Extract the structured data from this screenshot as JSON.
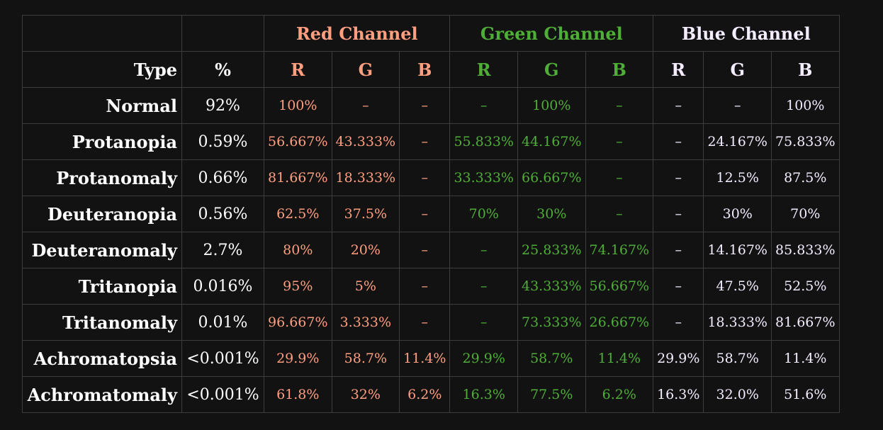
{
  "headers": {
    "channels": [
      {
        "label": "Red Channel",
        "color": "#ff9f80"
      },
      {
        "label": "Green Channel",
        "color": "#4fae37"
      },
      {
        "label": "Blue Channel",
        "color": "#f4ecff"
      }
    ],
    "type": "Type",
    "percent": "%",
    "sub": [
      "R",
      "G",
      "B",
      "R",
      "G",
      "B",
      "R",
      "G",
      "B"
    ]
  },
  "rows": [
    {
      "type": "Normal",
      "percent": "92%",
      "values": [
        "100%",
        "–",
        "–",
        "–",
        "100%",
        "–",
        "–",
        "–",
        "100%"
      ]
    },
    {
      "type": "Protanopia",
      "percent": "0.59%",
      "values": [
        "56.667%",
        "43.333%",
        "–",
        "55.833%",
        "44.167%",
        "–",
        "–",
        "24.167%",
        "75.833%"
      ]
    },
    {
      "type": "Protanomaly",
      "percent": "0.66%",
      "values": [
        "81.667%",
        "18.333%",
        "–",
        "33.333%",
        "66.667%",
        "–",
        "–",
        "12.5%",
        "87.5%"
      ]
    },
    {
      "type": "Deuteranopia",
      "percent": "0.56%",
      "values": [
        "62.5%",
        "37.5%",
        "–",
        "70%",
        "30%",
        "–",
        "–",
        "30%",
        "70%"
      ]
    },
    {
      "type": "Deuteranomaly",
      "percent": "2.7%",
      "values": [
        "80%",
        "20%",
        "–",
        "–",
        "25.833%",
        "74.167%",
        "–",
        "14.167%",
        "85.833%"
      ]
    },
    {
      "type": "Tritanopia",
      "percent": "0.016%",
      "values": [
        "95%",
        "5%",
        "–",
        "–",
        "43.333%",
        "56.667%",
        "–",
        "47.5%",
        "52.5%"
      ]
    },
    {
      "type": "Tritanomaly",
      "percent": "0.01%",
      "values": [
        "96.667%",
        "3.333%",
        "–",
        "–",
        "73.333%",
        "26.667%",
        "–",
        "18.333%",
        "81.667%"
      ]
    },
    {
      "type": "Achromatopsia",
      "percent": "<0.001%",
      "values": [
        "29.9%",
        "58.7%",
        "11.4%",
        "29.9%",
        "58.7%",
        "11.4%",
        "29.9%",
        "58.7%",
        "11.4%"
      ]
    },
    {
      "type": "Achromatomaly",
      "percent": "<0.001%",
      "values": [
        "61.8%",
        "32%",
        "6.2%",
        "16.3%",
        "77.5%",
        "6.2%",
        "16.3%",
        "32.0%",
        "51.6%"
      ]
    }
  ]
}
